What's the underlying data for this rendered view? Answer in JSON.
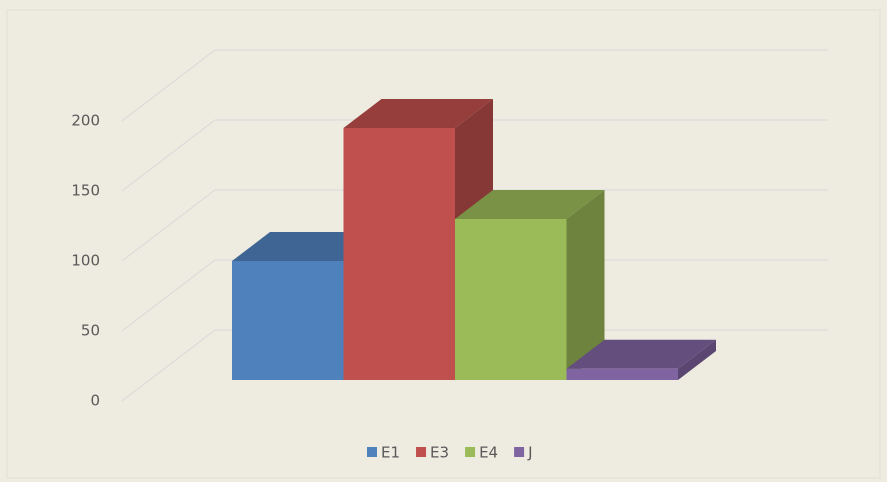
{
  "chart_data": {
    "type": "bar3d",
    "series": [
      {
        "name": "E1",
        "color": "#4f81bd",
        "values": [
          85
        ]
      },
      {
        "name": "E3",
        "color": "#c0504d",
        "values": [
          180
        ]
      },
      {
        "name": "E4",
        "color": "#9bbb59",
        "values": [
          115
        ]
      },
      {
        "name": "J",
        "color": "#8064a2",
        "values": [
          8
        ]
      }
    ],
    "ylim": [
      0,
      200
    ],
    "yticks": [
      0,
      50,
      100,
      150,
      200
    ],
    "grid": true,
    "legend": "bottom"
  }
}
